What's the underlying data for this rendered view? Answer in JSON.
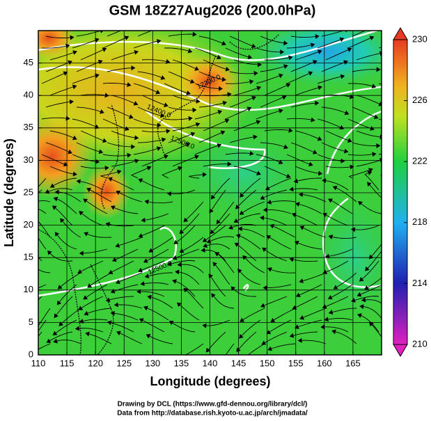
{
  "chart_data": {
    "type": "map",
    "title": "GSM 18Z27Aug2026 (200.0hPa)",
    "xlabel": "Longitude (degrees)",
    "ylabel": "Latitude  (degrees)",
    "xlim": [
      110,
      170
    ],
    "ylim": [
      0,
      50
    ],
    "xticks": [
      110,
      115,
      120,
      125,
      130,
      135,
      140,
      145,
      150,
      155,
      160,
      165
    ],
    "yticks": [
      0,
      5,
      10,
      15,
      20,
      25,
      30,
      35,
      40,
      45
    ],
    "grid": true,
    "colorbar": {
      "clim": [
        210,
        230
      ],
      "ticks": [
        210,
        214,
        218,
        222,
        226,
        230
      ]
    },
    "contour_labels": [
      "12400.0",
      "12500.0",
      "12300.0",
      "12500.0"
    ],
    "footer": [
      "Drawing by DCL (https://www.gfd-dennou.org/library/dcl/)",
      "Data from http://database.rish.kyoto-u.ac.jp/arch/jmadata/"
    ]
  }
}
